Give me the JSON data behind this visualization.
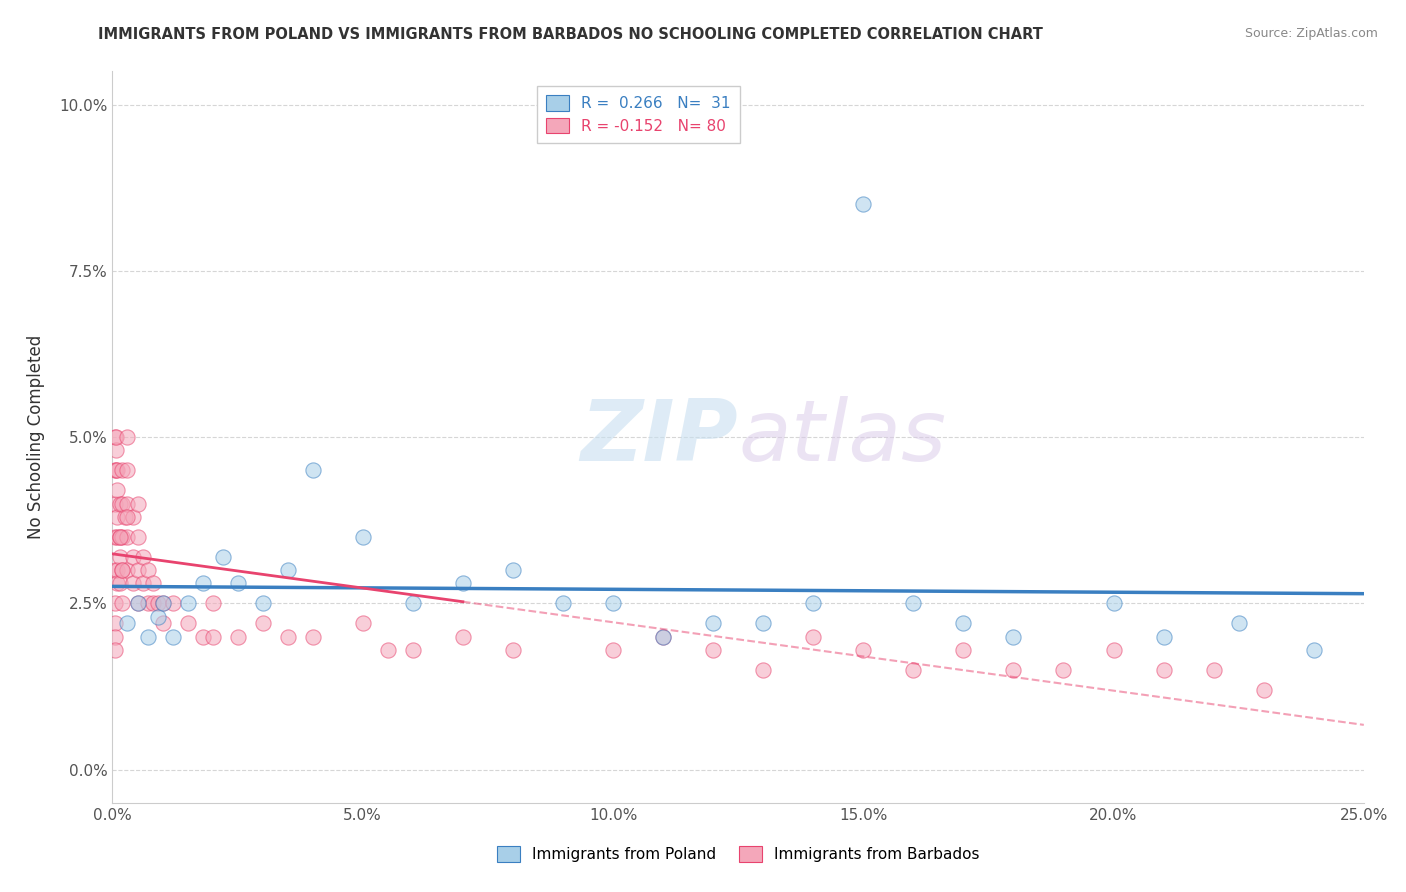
{
  "title": "IMMIGRANTS FROM POLAND VS IMMIGRANTS FROM BARBADOS NO SCHOOLING COMPLETED CORRELATION CHART",
  "source": "Source: ZipAtlas.com",
  "ylabel": "No Schooling Completed",
  "ytick_vals": [
    0.0,
    2.5,
    5.0,
    7.5,
    10.0
  ],
  "xlim": [
    0.0,
    25.0
  ],
  "ylim": [
    -0.5,
    10.5
  ],
  "legend_poland_R": "0.266",
  "legend_poland_N": "31",
  "legend_barbados_R": "-0.152",
  "legend_barbados_N": "80",
  "color_poland": "#a8cfe8",
  "color_barbados": "#f4a7ba",
  "color_poland_line": "#3a7fc1",
  "color_barbados_line": "#e8436e",
  "watermark_zip": "ZIP",
  "watermark_atlas": "atlas",
  "poland_x": [
    0.3,
    0.5,
    0.7,
    0.9,
    1.0,
    1.2,
    1.5,
    1.8,
    2.2,
    2.5,
    3.0,
    3.5,
    4.0,
    5.0,
    6.0,
    7.0,
    8.0,
    9.0,
    10.0,
    11.0,
    12.0,
    13.0,
    14.0,
    15.0,
    16.0,
    17.0,
    18.0,
    20.0,
    21.0,
    22.5,
    24.0
  ],
  "poland_y": [
    2.2,
    2.5,
    2.0,
    2.3,
    2.5,
    2.0,
    2.5,
    2.8,
    3.2,
    2.8,
    2.5,
    3.0,
    4.5,
    3.5,
    2.5,
    2.8,
    3.0,
    2.5,
    2.5,
    2.0,
    2.2,
    2.2,
    2.5,
    8.5,
    2.5,
    2.2,
    2.0,
    2.5,
    2.0,
    2.2,
    1.8
  ],
  "barbados_x": [
    0.05,
    0.05,
    0.05,
    0.05,
    0.05,
    0.05,
    0.05,
    0.05,
    0.05,
    0.08,
    0.08,
    0.08,
    0.1,
    0.1,
    0.1,
    0.1,
    0.1,
    0.1,
    0.15,
    0.15,
    0.15,
    0.15,
    0.2,
    0.2,
    0.2,
    0.2,
    0.2,
    0.25,
    0.3,
    0.3,
    0.3,
    0.3,
    0.3,
    0.4,
    0.4,
    0.4,
    0.5,
    0.5,
    0.5,
    0.5,
    0.6,
    0.6,
    0.7,
    0.7,
    0.8,
    0.8,
    0.9,
    1.0,
    1.0,
    1.2,
    1.5,
    1.8,
    2.0,
    2.0,
    2.5,
    3.0,
    3.5,
    4.0,
    5.0,
    5.5,
    6.0,
    7.0,
    8.0,
    10.0,
    11.0,
    12.0,
    13.0,
    14.0,
    15.0,
    16.0,
    17.0,
    18.0,
    19.0,
    20.0,
    21.0,
    22.0,
    23.0,
    0.15,
    0.2,
    0.3
  ],
  "barbados_y": [
    2.5,
    2.2,
    2.0,
    1.8,
    3.0,
    3.5,
    4.0,
    4.5,
    5.0,
    4.8,
    4.5,
    5.0,
    4.2,
    4.5,
    3.8,
    3.5,
    3.0,
    2.8,
    4.0,
    3.5,
    3.2,
    2.8,
    4.5,
    4.0,
    3.5,
    3.0,
    2.5,
    3.8,
    5.0,
    4.5,
    4.0,
    3.5,
    3.0,
    3.8,
    3.2,
    2.8,
    4.0,
    3.5,
    3.0,
    2.5,
    3.2,
    2.8,
    3.0,
    2.5,
    2.8,
    2.5,
    2.5,
    2.5,
    2.2,
    2.5,
    2.2,
    2.0,
    2.5,
    2.0,
    2.0,
    2.2,
    2.0,
    2.0,
    2.2,
    1.8,
    1.8,
    2.0,
    1.8,
    1.8,
    2.0,
    1.8,
    1.5,
    2.0,
    1.8,
    1.5,
    1.8,
    1.5,
    1.5,
    1.8,
    1.5,
    1.5,
    1.2,
    3.5,
    3.0,
    3.8
  ]
}
